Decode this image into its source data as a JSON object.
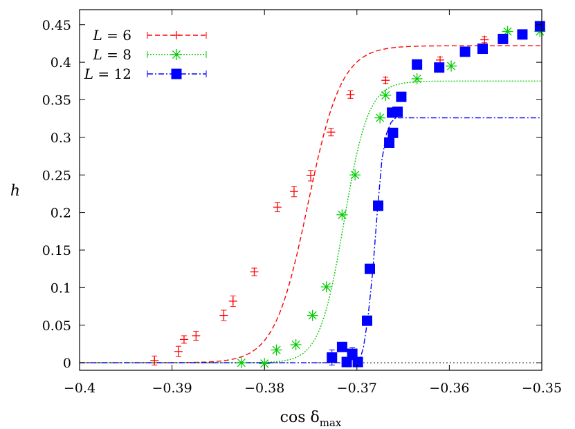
{
  "chart_data": {
    "type": "scatter",
    "xlabel": "cos δ",
    "xlabel_sub": "max",
    "ylabel": "h",
    "xlim": [
      -0.4,
      -0.35
    ],
    "ylim": [
      -0.01,
      0.47
    ],
    "x_ticks": [
      -0.4,
      -0.39,
      -0.38,
      -0.37,
      -0.36,
      -0.35
    ],
    "x_tick_labels": [
      "−0.4",
      "−0.39",
      "−0.38",
      "−0.37",
      "−0.36",
      "−0.35"
    ],
    "y_ticks": [
      0,
      0.05,
      0.1,
      0.15,
      0.2,
      0.25,
      0.3,
      0.35,
      0.4,
      0.45
    ],
    "y_tick_labels": [
      "0",
      "0.05",
      "0.1",
      "0.15",
      "0.2",
      "0.25",
      "0.3",
      "0.35",
      "0.4",
      "0.45"
    ],
    "grid": false,
    "legend_position": "top-left",
    "baseline": {
      "y": 0,
      "style": "dotted"
    },
    "series": [
      {
        "name": "L = 6",
        "legend_var": "L",
        "legend_value": "6",
        "color": "#ff0000",
        "marker": "plus",
        "line_style": "dashed",
        "points": [
          [
            -0.3919,
            0.003
          ],
          [
            -0.3893,
            0.015
          ],
          [
            -0.3887,
            0.031
          ],
          [
            -0.3874,
            0.036
          ],
          [
            -0.3844,
            0.063
          ],
          [
            -0.3834,
            0.082
          ],
          [
            -0.3811,
            0.121
          ],
          [
            -0.3786,
            0.207
          ],
          [
            -0.3768,
            0.228
          ],
          [
            -0.375,
            0.249
          ],
          [
            -0.3728,
            0.307
          ],
          [
            -0.3707,
            0.357
          ],
          [
            -0.3669,
            0.376
          ],
          [
            -0.361,
            0.403
          ],
          [
            -0.3562,
            0.43
          ]
        ],
        "errors": [
          0.006,
          0.007,
          0.005,
          0.006,
          0.007,
          0.007,
          0.005,
          0.006,
          0.007,
          0.007,
          0.005,
          0.005,
          0.004,
          0.004,
          0.004
        ],
        "fit": {
          "type": "logistic",
          "a": 0.422,
          "x0": -0.3753,
          "k": 550
        }
      },
      {
        "name": "L = 8",
        "legend_var": "L",
        "legend_value": "8",
        "color": "#00cc00",
        "marker": "star",
        "line_style": "dotted",
        "points": [
          [
            -0.3825,
            0.0
          ],
          [
            -0.38,
            -0.001
          ],
          [
            -0.3787,
            0.017
          ],
          [
            -0.3766,
            0.024
          ],
          [
            -0.3748,
            0.063
          ],
          [
            -0.3733,
            0.101
          ],
          [
            -0.3716,
            0.197
          ],
          [
            -0.3702,
            0.25
          ],
          [
            -0.3675,
            0.326
          ],
          [
            -0.3669,
            0.356
          ],
          [
            -0.3635,
            0.378
          ],
          [
            -0.3598,
            0.395
          ],
          [
            -0.3537,
            0.441
          ],
          [
            -0.3502,
            0.441
          ]
        ],
        "errors": [],
        "fit": {
          "type": "logistic",
          "a": 0.375,
          "x0": -0.3714,
          "k": 760
        }
      },
      {
        "name": "L = 12",
        "legend_var": "L",
        "legend_value": "12",
        "color": "#0000ff",
        "marker": "square",
        "line_style": "dash-dot",
        "points": [
          [
            -0.3727,
            0.007
          ],
          [
            -0.3716,
            0.021
          ],
          [
            -0.3711,
            0.001
          ],
          [
            -0.3705,
            0.012
          ],
          [
            -0.3699,
            0.001
          ],
          [
            -0.3689,
            0.056
          ],
          [
            -0.3686,
            0.125
          ],
          [
            -0.3677,
            0.209
          ],
          [
            -0.3665,
            0.293
          ],
          [
            -0.3661,
            0.306
          ],
          [
            -0.3662,
            0.333
          ],
          [
            -0.3656,
            0.334
          ],
          [
            -0.3652,
            0.354
          ],
          [
            -0.3635,
            0.397
          ],
          [
            -0.3611,
            0.393
          ],
          [
            -0.3583,
            0.414
          ],
          [
            -0.3564,
            0.418
          ],
          [
            -0.3542,
            0.431
          ],
          [
            -0.3521,
            0.437
          ],
          [
            -0.3502,
            0.448
          ]
        ],
        "errors": [
          0.01,
          0.0,
          0.0,
          0.008,
          0.0,
          0.0,
          0.0,
          0.0,
          0.0,
          0.0,
          0.0,
          0.0,
          0.0,
          0.0,
          0.0,
          0.0,
          0.0,
          0.0,
          0.0,
          0.0
        ],
        "fit": {
          "type": "piecewise-linear",
          "points": [
            [
              -0.4,
              0.0
            ],
            [
              -0.3698,
              0.0
            ],
            [
              -0.3693,
              0.02
            ],
            [
              -0.3688,
              0.06
            ],
            [
              -0.3683,
              0.12
            ],
            [
              -0.3678,
              0.2
            ],
            [
              -0.3673,
              0.27
            ],
            [
              -0.3668,
              0.305
            ],
            [
              -0.3663,
              0.32
            ],
            [
              -0.3658,
              0.326
            ],
            [
              -0.35,
              0.326
            ]
          ]
        }
      }
    ]
  }
}
